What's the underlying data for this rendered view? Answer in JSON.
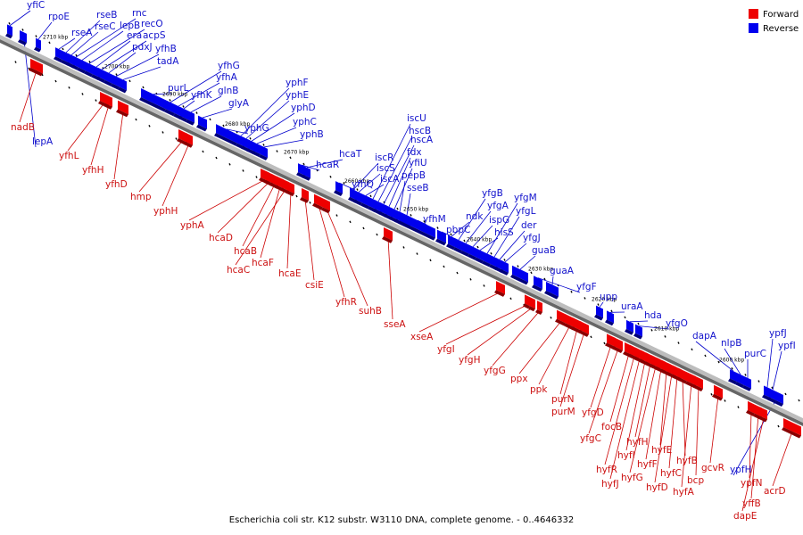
{
  "legend": {
    "forward": {
      "label": "Forward",
      "color": "#ee0000"
    },
    "reverse": {
      "label": "Reverse",
      "color": "#0000ee"
    }
  },
  "caption": "Escherichia coli str. K12 substr. W3110 DNA, complete genome. - 0..4646332",
  "scale_labels": [
    "2710 kbp",
    "2700 kbp",
    "2690 kbp",
    "2680 kbp",
    "2670 kbp",
    "2660 kbp",
    "2650 kbp",
    "2640 kbp",
    "2630 kbp",
    "2620 kbp",
    "2610 kbp",
    "2600 kbp"
  ],
  "reverse_genes": [
    "yfiC",
    "rpoE",
    "rseA",
    "rseB",
    "rseC",
    "rnc",
    "lepB",
    "recO",
    "era",
    "acpS",
    "pdxJ",
    "yfhB",
    "tadA",
    "lepA",
    "purL",
    "yfhG",
    "yfhA",
    "yfhK",
    "glnB",
    "glyA",
    "yphG",
    "yphF",
    "yphE",
    "yphD",
    "yphC",
    "yphB",
    "hcaT",
    "hcaR",
    "yfhQ",
    "iscR",
    "iscS",
    "iscA",
    "iscU",
    "hscB",
    "hscA",
    "fdx",
    "yfiU",
    "pepB",
    "sseB",
    "yfhM",
    "pbpC",
    "ndk",
    "yfgB",
    "yfgA",
    "ispG",
    "hisS",
    "yfgM",
    "yfgL",
    "der",
    "yfgJ",
    "guaB",
    "guaA",
    "yfgF",
    "upp",
    "uraA",
    "hda",
    "yfgO",
    "dapA",
    "nlpB",
    "purC",
    "ypfJ",
    "ypfI",
    "ypfH"
  ],
  "forward_genes": [
    "nadB",
    "yfhL",
    "yfhH",
    "yfhD",
    "hmp",
    "yphH",
    "yphA",
    "hcaD",
    "hcaB",
    "hcaF",
    "hcaC",
    "hcaE",
    "csiE",
    "yfhR",
    "suhB",
    "sseA",
    "xseA",
    "yfgI",
    "yfgH",
    "yfgG",
    "ppx",
    "ppk",
    "purN",
    "purM",
    "yfgD",
    "yfgC",
    "focB",
    "hyfR",
    "hyfJ",
    "hyfI",
    "hyfH",
    "hyfG",
    "hyfF",
    "hyfE",
    "hyfD",
    "hyfC",
    "hyfB",
    "hyfA",
    "bcp",
    "gcvR",
    "ypfN",
    "yffB",
    "dapE",
    "acrD"
  ]
}
